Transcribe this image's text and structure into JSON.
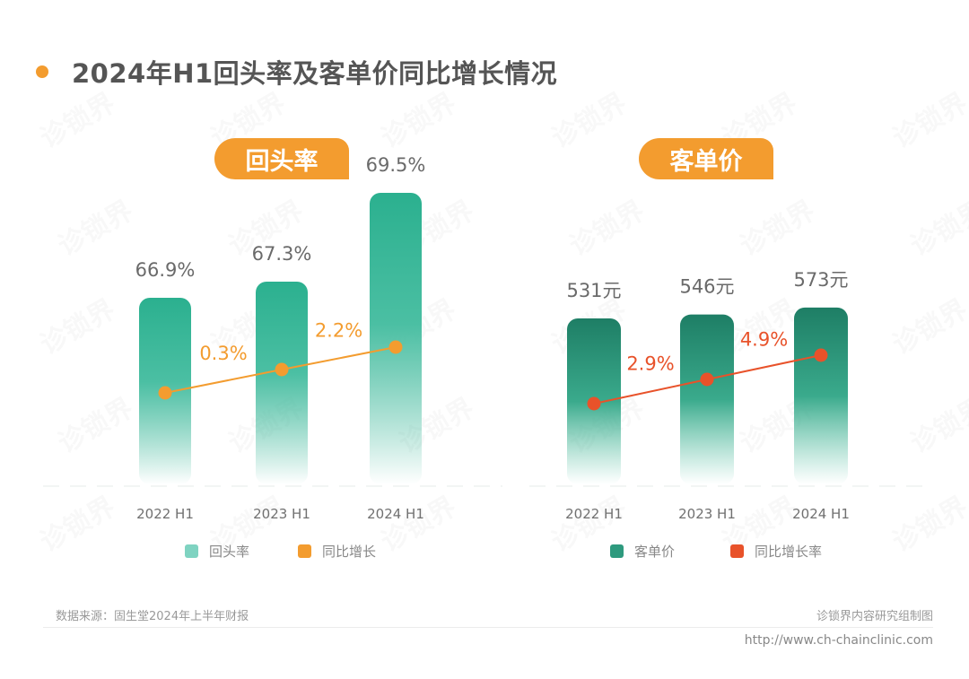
{
  "title": "2024年H1回头率及客单价同比增长情况",
  "watermark": "诊锁界",
  "chart_data": [
    {
      "type": "bar",
      "title": "回头率",
      "categories": [
        "2022 H1",
        "2023 H1",
        "2024 H1"
      ],
      "series": [
        {
          "name": "回头率",
          "type": "bar",
          "values": [
            66.9,
            67.3,
            69.5
          ],
          "labels": [
            "66.9%",
            "67.3%",
            "69.5%"
          ],
          "color": "#2bb08f"
        },
        {
          "name": "同比增长",
          "type": "line",
          "values": [
            null,
            0.3,
            2.2
          ],
          "labels": [
            "",
            "0.3%",
            "2.2%"
          ],
          "color": "#f39c2f"
        }
      ],
      "legend": [
        "回头率",
        "同比增长"
      ],
      "legend_colors": [
        "#7fd3c1",
        "#f39c2f"
      ],
      "legend_position": "bottom"
    },
    {
      "type": "bar",
      "title": "客单价",
      "categories": [
        "2022 H1",
        "2023 H1",
        "2024 H1"
      ],
      "series": [
        {
          "name": "客单价",
          "type": "bar",
          "values": [
            531,
            546,
            573
          ],
          "labels": [
            "531元",
            "546元",
            "573元"
          ],
          "color": "#1e7e65"
        },
        {
          "name": "同比增长率",
          "type": "line",
          "values": [
            null,
            2.9,
            4.9
          ],
          "labels": [
            "",
            "2.9%",
            "4.9%"
          ],
          "color": "#e8522a"
        }
      ],
      "legend": [
        "客单价",
        "同比增长率"
      ],
      "legend_colors": [
        "#2e9a7e",
        "#e8522a"
      ],
      "legend_position": "bottom"
    }
  ],
  "footer": {
    "source": "数据来源：固生堂2024年上半年财报",
    "credit": "诊锁界内容研究组制图",
    "url": "http://www.ch-chainclinic.com"
  }
}
